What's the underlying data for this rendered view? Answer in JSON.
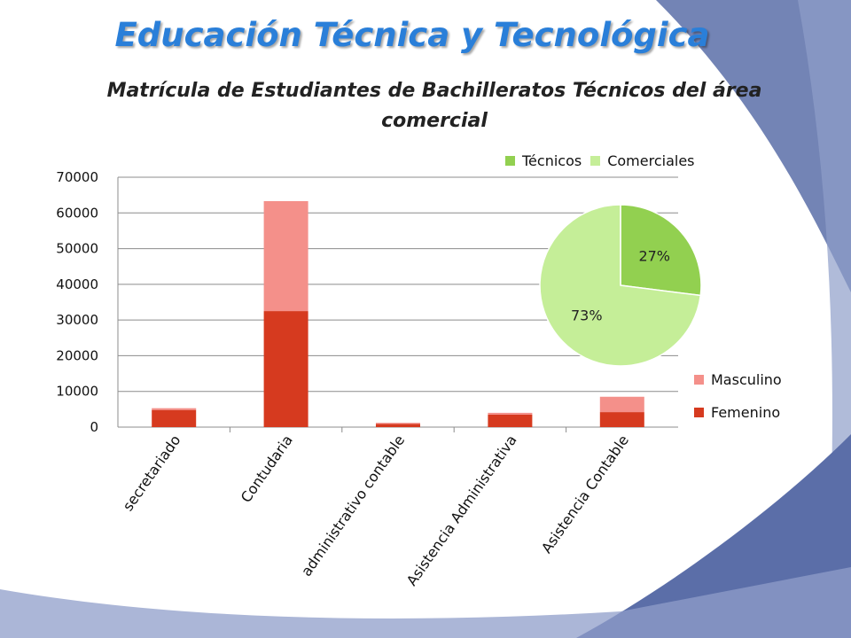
{
  "slide": {
    "title": "Educación Técnica y Tecnológica"
  },
  "colors": {
    "femenino": "#d63a1f",
    "masculino": "#f4908a",
    "tecnicos": "#92d050",
    "comerciales": "#c5ee98",
    "frame_blue": "#5b6ea8",
    "frame_light": "#8f9ec9"
  },
  "chart_data": [
    {
      "type": "bar",
      "stacked": true,
      "title": "Matrícula de Estudiantes de Bachilleratos Técnicos del área comercial",
      "categories": [
        "secretariado",
        "Contudaria",
        "administrativo contable",
        "Asistencia Administrativa",
        "Asistencia Contable"
      ],
      "series": [
        {
          "name": "Femenino",
          "values": [
            4800,
            32500,
            900,
            3500,
            4200
          ]
        },
        {
          "name": "Masculino",
          "values": [
            500,
            30800,
            300,
            500,
            4300
          ]
        }
      ],
      "ylim": [
        0,
        70000
      ],
      "yticks": [
        "0",
        "10000",
        "20000",
        "30000",
        "40000",
        "50000",
        "60000",
        "70000"
      ],
      "grid": true,
      "legend": "right"
    },
    {
      "type": "pie",
      "labels": [
        "Técnicos",
        "Comerciales"
      ],
      "values": [
        27,
        73
      ],
      "data_labels": [
        "27%",
        "73%"
      ],
      "legend": "top"
    }
  ]
}
